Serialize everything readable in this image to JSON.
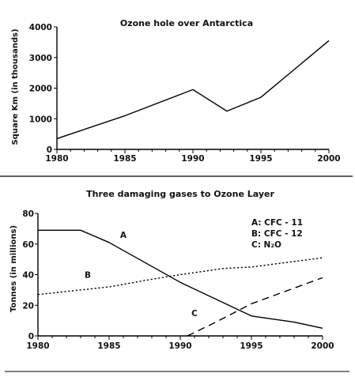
{
  "chart_data": [
    {
      "type": "line",
      "title": "Ozone hole over Antarctica",
      "xlabel": "",
      "ylabel": "Square Km (in thousands)",
      "xlim": [
        1980,
        2000
      ],
      "ylim": [
        0,
        4000
      ],
      "x_ticks": [
        1980,
        1985,
        1990,
        1995,
        2000
      ],
      "y_ticks": [
        0,
        1000,
        2000,
        3000,
        4000
      ],
      "x_tick_labels": [
        "1980",
        "1985",
        "1990",
        "1995",
        "2000"
      ],
      "y_tick_labels": [
        "0",
        "1000",
        "2000",
        "3000",
        "4000"
      ],
      "series": [
        {
          "line_style": "solid",
          "color": "#000000",
          "points": [
            [
              1980,
              350
            ],
            [
              1985,
              1100
            ],
            [
              1990,
              1950
            ],
            [
              1992.5,
              1250
            ],
            [
              1995,
              1700
            ],
            [
              2000,
              3550
            ]
          ]
        }
      ]
    },
    {
      "type": "line",
      "title": "Three damaging gases to Ozone Layer",
      "xlabel": "",
      "ylabel": "Tonnes (in millions)",
      "xlim": [
        1980,
        2000
      ],
      "ylim": [
        0,
        80
      ],
      "x_ticks": [
        1980,
        1985,
        1990,
        1995,
        2000
      ],
      "y_ticks": [
        0,
        20,
        40,
        60,
        80
      ],
      "x_tick_labels": [
        "1980",
        "1985",
        "1990",
        "1995",
        "2000"
      ],
      "y_tick_labels": [
        "0",
        "20",
        "40",
        "60",
        "80"
      ],
      "legend": {
        "position": "top-right",
        "entries": [
          "A: CFC - 11",
          "B: CFC - 12",
          "C: N₂O"
        ]
      },
      "series": [
        {
          "name": "A",
          "line_style": "solid",
          "color": "#000000",
          "label_at": [
            1986,
            64
          ],
          "points": [
            [
              1980,
              69
            ],
            [
              1983,
              69
            ],
            [
              1985,
              61
            ],
            [
              1990,
              35
            ],
            [
              1995,
              13
            ],
            [
              1998,
              9
            ],
            [
              2000,
              5
            ]
          ]
        },
        {
          "name": "B",
          "line_style": "dotted",
          "color": "#000000",
          "label_at": [
            1983.5,
            38
          ],
          "points": [
            [
              1980,
              27
            ],
            [
              1985,
              32
            ],
            [
              1988,
              37
            ],
            [
              1990,
              40
            ],
            [
              1993,
              44
            ],
            [
              1995,
              45
            ],
            [
              2000,
              51
            ]
          ]
        },
        {
          "name": "C",
          "line_style": "dashed",
          "color": "#000000",
          "label_at": [
            1991,
            13
          ],
          "points": [
            [
              1990.5,
              0
            ],
            [
              1992.5,
              9
            ],
            [
              1995,
              21
            ],
            [
              2000,
              38
            ]
          ]
        }
      ]
    }
  ]
}
